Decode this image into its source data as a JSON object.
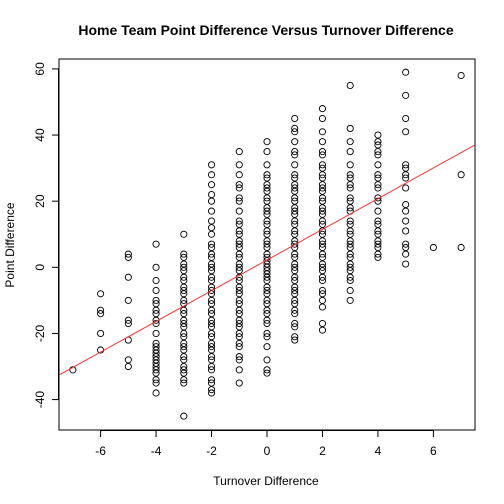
{
  "chart_data": {
    "type": "scatter",
    "title": "Home Team Point Difference Versus Turnover Difference",
    "xlabel": "Turnover Difference",
    "ylabel": "Point Difference",
    "xlim": [
      -7.5,
      7.5
    ],
    "ylim": [
      -49.2,
      63.0
    ],
    "x_ticks": [
      -6,
      -4,
      -2,
      0,
      2,
      4,
      6
    ],
    "y_ticks": [
      -40,
      -20,
      0,
      20,
      40,
      60
    ],
    "grid": false,
    "legend": "none",
    "point_color": "#000000",
    "fit_line": {
      "color": "#ff3333",
      "intercept": 2.2,
      "slope": 4.64
    },
    "points": [
      [
        -7,
        -31
      ],
      [
        -6,
        -8
      ],
      [
        -6,
        -13
      ],
      [
        -6,
        -14
      ],
      [
        -6,
        -20
      ],
      [
        -6,
        -25
      ],
      [
        -5,
        4
      ],
      [
        -5,
        3
      ],
      [
        -5,
        -3
      ],
      [
        -5,
        -10
      ],
      [
        -5,
        -16
      ],
      [
        -5,
        -17
      ],
      [
        -5,
        -22
      ],
      [
        -5,
        -28
      ],
      [
        -5,
        -30
      ],
      [
        -4,
        7
      ],
      [
        -4,
        0
      ],
      [
        -4,
        -4
      ],
      [
        -4,
        -7
      ],
      [
        -4,
        -10
      ],
      [
        -4,
        -11
      ],
      [
        -4,
        -13
      ],
      [
        -4,
        -14
      ],
      [
        -4,
        -16
      ],
      [
        -4,
        -17
      ],
      [
        -4,
        -20
      ],
      [
        -4,
        -23
      ],
      [
        -4,
        -24
      ],
      [
        -4,
        -25
      ],
      [
        -4,
        -26
      ],
      [
        -4,
        -27
      ],
      [
        -4,
        -28
      ],
      [
        -4,
        -29
      ],
      [
        -4,
        -30
      ],
      [
        -4,
        -31
      ],
      [
        -4,
        -32
      ],
      [
        -4,
        -34
      ],
      [
        -4,
        -35
      ],
      [
        -4,
        -38
      ],
      [
        -3,
        10
      ],
      [
        -3,
        4
      ],
      [
        -3,
        3
      ],
      [
        -3,
        1
      ],
      [
        -3,
        0
      ],
      [
        -3,
        -1
      ],
      [
        -3,
        -3
      ],
      [
        -3,
        -4
      ],
      [
        -3,
        -6
      ],
      [
        -3,
        -7
      ],
      [
        -3,
        -8
      ],
      [
        -3,
        -10
      ],
      [
        -3,
        -11
      ],
      [
        -3,
        -13
      ],
      [
        -3,
        -14
      ],
      [
        -3,
        -16
      ],
      [
        -3,
        -17
      ],
      [
        -3,
        -18
      ],
      [
        -3,
        -20
      ],
      [
        -3,
        -21
      ],
      [
        -3,
        -23
      ],
      [
        -3,
        -24
      ],
      [
        -3,
        -25
      ],
      [
        -3,
        -27
      ],
      [
        -3,
        -28
      ],
      [
        -3,
        -30
      ],
      [
        -3,
        -31
      ],
      [
        -3,
        -32
      ],
      [
        -3,
        -34
      ],
      [
        -3,
        -35
      ],
      [
        -3,
        -45
      ],
      [
        -2,
        31
      ],
      [
        -2,
        28
      ],
      [
        -2,
        25
      ],
      [
        -2,
        22
      ],
      [
        -2,
        20
      ],
      [
        -2,
        17
      ],
      [
        -2,
        14
      ],
      [
        -2,
        12
      ],
      [
        -2,
        10
      ],
      [
        -2,
        7
      ],
      [
        -2,
        6
      ],
      [
        -2,
        4
      ],
      [
        -2,
        3
      ],
      [
        -2,
        1
      ],
      [
        -2,
        0
      ],
      [
        -2,
        -1
      ],
      [
        -2,
        -3
      ],
      [
        -2,
        -4
      ],
      [
        -2,
        -6
      ],
      [
        -2,
        -7
      ],
      [
        -2,
        -8
      ],
      [
        -2,
        -10
      ],
      [
        -2,
        -11
      ],
      [
        -2,
        -13
      ],
      [
        -2,
        -14
      ],
      [
        -2,
        -16
      ],
      [
        -2,
        -17
      ],
      [
        -2,
        -18
      ],
      [
        -2,
        -20
      ],
      [
        -2,
        -21
      ],
      [
        -2,
        -23
      ],
      [
        -2,
        -24
      ],
      [
        -2,
        -25
      ],
      [
        -2,
        -27
      ],
      [
        -2,
        -28
      ],
      [
        -2,
        -30
      ],
      [
        -2,
        -31
      ],
      [
        -2,
        -34
      ],
      [
        -2,
        -35
      ],
      [
        -2,
        -37
      ],
      [
        -2,
        -38
      ],
      [
        -1,
        35
      ],
      [
        -1,
        31
      ],
      [
        -1,
        28
      ],
      [
        -1,
        25
      ],
      [
        -1,
        24
      ],
      [
        -1,
        21
      ],
      [
        -1,
        20
      ],
      [
        -1,
        17
      ],
      [
        -1,
        14
      ],
      [
        -1,
        13
      ],
      [
        -1,
        11
      ],
      [
        -1,
        10
      ],
      [
        -1,
        8
      ],
      [
        -1,
        7
      ],
      [
        -1,
        6
      ],
      [
        -1,
        4
      ],
      [
        -1,
        3
      ],
      [
        -1,
        1
      ],
      [
        -1,
        0
      ],
      [
        -1,
        -1
      ],
      [
        -1,
        -3
      ],
      [
        -1,
        -4
      ],
      [
        -1,
        -6
      ],
      [
        -1,
        -7
      ],
      [
        -1,
        -8
      ],
      [
        -1,
        -10
      ],
      [
        -1,
        -11
      ],
      [
        -1,
        -13
      ],
      [
        -1,
        -14
      ],
      [
        -1,
        -16
      ],
      [
        -1,
        -17
      ],
      [
        -1,
        -18
      ],
      [
        -1,
        -20
      ],
      [
        -1,
        -21
      ],
      [
        -1,
        -23
      ],
      [
        -1,
        -24
      ],
      [
        -1,
        -27
      ],
      [
        -1,
        -28
      ],
      [
        -1,
        -31
      ],
      [
        -1,
        -35
      ],
      [
        0,
        38
      ],
      [
        0,
        35
      ],
      [
        0,
        31
      ],
      [
        0,
        28
      ],
      [
        0,
        27
      ],
      [
        0,
        25
      ],
      [
        0,
        24
      ],
      [
        0,
        23
      ],
      [
        0,
        21
      ],
      [
        0,
        20
      ],
      [
        0,
        18
      ],
      [
        0,
        17
      ],
      [
        0,
        16
      ],
      [
        0,
        14
      ],
      [
        0,
        13
      ],
      [
        0,
        11
      ],
      [
        0,
        10
      ],
      [
        0,
        8
      ],
      [
        0,
        7
      ],
      [
        0,
        6
      ],
      [
        0,
        4
      ],
      [
        0,
        3
      ],
      [
        0,
        2
      ],
      [
        0,
        1
      ],
      [
        0,
        0
      ],
      [
        0,
        -1
      ],
      [
        0,
        -2
      ],
      [
        0,
        -3
      ],
      [
        0,
        -4
      ],
      [
        0,
        -6
      ],
      [
        0,
        -7
      ],
      [
        0,
        -8
      ],
      [
        0,
        -10
      ],
      [
        0,
        -11
      ],
      [
        0,
        -13
      ],
      [
        0,
        -14
      ],
      [
        0,
        -16
      ],
      [
        0,
        -17
      ],
      [
        0,
        -20
      ],
      [
        0,
        -21
      ],
      [
        0,
        -24
      ],
      [
        0,
        -28
      ],
      [
        0,
        -31
      ],
      [
        0,
        -32
      ],
      [
        1,
        45
      ],
      [
        1,
        42
      ],
      [
        1,
        41
      ],
      [
        1,
        38
      ],
      [
        1,
        35
      ],
      [
        1,
        34
      ],
      [
        1,
        31
      ],
      [
        1,
        28
      ],
      [
        1,
        27
      ],
      [
        1,
        25
      ],
      [
        1,
        24
      ],
      [
        1,
        23
      ],
      [
        1,
        21
      ],
      [
        1,
        20
      ],
      [
        1,
        18
      ],
      [
        1,
        17
      ],
      [
        1,
        16
      ],
      [
        1,
        14
      ],
      [
        1,
        13
      ],
      [
        1,
        11
      ],
      [
        1,
        10
      ],
      [
        1,
        8
      ],
      [
        1,
        7
      ],
      [
        1,
        6
      ],
      [
        1,
        4
      ],
      [
        1,
        3
      ],
      [
        1,
        1
      ],
      [
        1,
        0
      ],
      [
        1,
        -1
      ],
      [
        1,
        -3
      ],
      [
        1,
        -4
      ],
      [
        1,
        -6
      ],
      [
        1,
        -7
      ],
      [
        1,
        -8
      ],
      [
        1,
        -10
      ],
      [
        1,
        -11
      ],
      [
        1,
        -13
      ],
      [
        1,
        -14
      ],
      [
        1,
        -17
      ],
      [
        1,
        -18
      ],
      [
        1,
        -21
      ],
      [
        1,
        -22
      ],
      [
        2,
        48
      ],
      [
        2,
        45
      ],
      [
        2,
        41
      ],
      [
        2,
        38
      ],
      [
        2,
        35
      ],
      [
        2,
        34
      ],
      [
        2,
        31
      ],
      [
        2,
        30
      ],
      [
        2,
        28
      ],
      [
        2,
        27
      ],
      [
        2,
        25
      ],
      [
        2,
        24
      ],
      [
        2,
        23
      ],
      [
        2,
        21
      ],
      [
        2,
        20
      ],
      [
        2,
        18
      ],
      [
        2,
        17
      ],
      [
        2,
        16
      ],
      [
        2,
        14
      ],
      [
        2,
        13
      ],
      [
        2,
        11
      ],
      [
        2,
        10
      ],
      [
        2,
        8
      ],
      [
        2,
        7
      ],
      [
        2,
        6
      ],
      [
        2,
        4
      ],
      [
        2,
        3
      ],
      [
        2,
        1
      ],
      [
        2,
        0
      ],
      [
        2,
        -1
      ],
      [
        2,
        -3
      ],
      [
        2,
        -4
      ],
      [
        2,
        -7
      ],
      [
        2,
        -8
      ],
      [
        2,
        -10
      ],
      [
        2,
        -12
      ],
      [
        2,
        -17
      ],
      [
        2,
        -19
      ],
      [
        3,
        55
      ],
      [
        3,
        42
      ],
      [
        3,
        38
      ],
      [
        3,
        35
      ],
      [
        3,
        31
      ],
      [
        3,
        28
      ],
      [
        3,
        27
      ],
      [
        3,
        25
      ],
      [
        3,
        24
      ],
      [
        3,
        21
      ],
      [
        3,
        20
      ],
      [
        3,
        18
      ],
      [
        3,
        17
      ],
      [
        3,
        14
      ],
      [
        3,
        13
      ],
      [
        3,
        11
      ],
      [
        3,
        10
      ],
      [
        3,
        8
      ],
      [
        3,
        7
      ],
      [
        3,
        6
      ],
      [
        3,
        4
      ],
      [
        3,
        3
      ],
      [
        3,
        1
      ],
      [
        3,
        0
      ],
      [
        3,
        -1
      ],
      [
        3,
        -3
      ],
      [
        3,
        -4
      ],
      [
        3,
        -7
      ],
      [
        3,
        -10
      ],
      [
        4,
        40
      ],
      [
        4,
        38
      ],
      [
        4,
        37
      ],
      [
        4,
        35
      ],
      [
        4,
        34
      ],
      [
        4,
        31
      ],
      [
        4,
        28
      ],
      [
        4,
        27
      ],
      [
        4,
        25
      ],
      [
        4,
        24
      ],
      [
        4,
        21
      ],
      [
        4,
        20
      ],
      [
        4,
        17
      ],
      [
        4,
        14
      ],
      [
        4,
        13
      ],
      [
        4,
        11
      ],
      [
        4,
        10
      ],
      [
        4,
        8
      ],
      [
        4,
        7
      ],
      [
        4,
        6
      ],
      [
        4,
        4
      ],
      [
        4,
        3
      ],
      [
        5,
        59
      ],
      [
        5,
        52
      ],
      [
        5,
        45
      ],
      [
        5,
        41
      ],
      [
        5,
        31
      ],
      [
        5,
        30
      ],
      [
        5,
        28
      ],
      [
        5,
        27
      ],
      [
        5,
        24
      ],
      [
        5,
        19
      ],
      [
        5,
        17
      ],
      [
        5,
        14
      ],
      [
        5,
        11
      ],
      [
        5,
        7
      ],
      [
        5,
        6
      ],
      [
        5,
        4
      ],
      [
        5,
        1
      ],
      [
        6,
        6
      ],
      [
        7,
        58
      ],
      [
        7,
        28
      ],
      [
        7,
        6
      ]
    ]
  }
}
